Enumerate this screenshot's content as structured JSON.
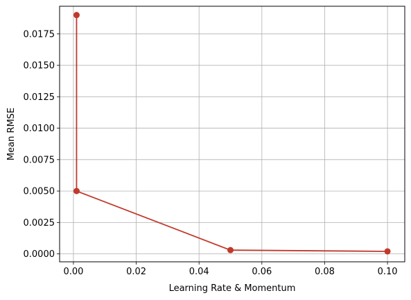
{
  "chart_data": {
    "type": "line",
    "title": "",
    "xlabel": "Learning Rate & Momentum",
    "ylabel": "Mean RMSE",
    "xlim": [
      -0.0044,
      0.1055
    ],
    "ylim": [
      -0.00063,
      0.0197
    ],
    "x_ticks": [
      0.0,
      0.02,
      0.04,
      0.06,
      0.08,
      0.1
    ],
    "x_tick_labels": [
      "0.00",
      "0.02",
      "0.04",
      "0.06",
      "0.08",
      "0.10"
    ],
    "y_ticks": [
      0.0,
      0.0025,
      0.005,
      0.0075,
      0.01,
      0.0125,
      0.015,
      0.0175
    ],
    "y_tick_labels": [
      "0.0000",
      "0.0025",
      "0.0050",
      "0.0075",
      "0.0100",
      "0.0125",
      "0.0150",
      "0.0175"
    ],
    "grid": true,
    "series": [
      {
        "color": "#c0392b",
        "x": [
          0.001,
          0.001,
          0.05,
          0.1
        ],
        "y": [
          0.019,
          0.005,
          0.0003,
          0.0002
        ]
      }
    ]
  }
}
